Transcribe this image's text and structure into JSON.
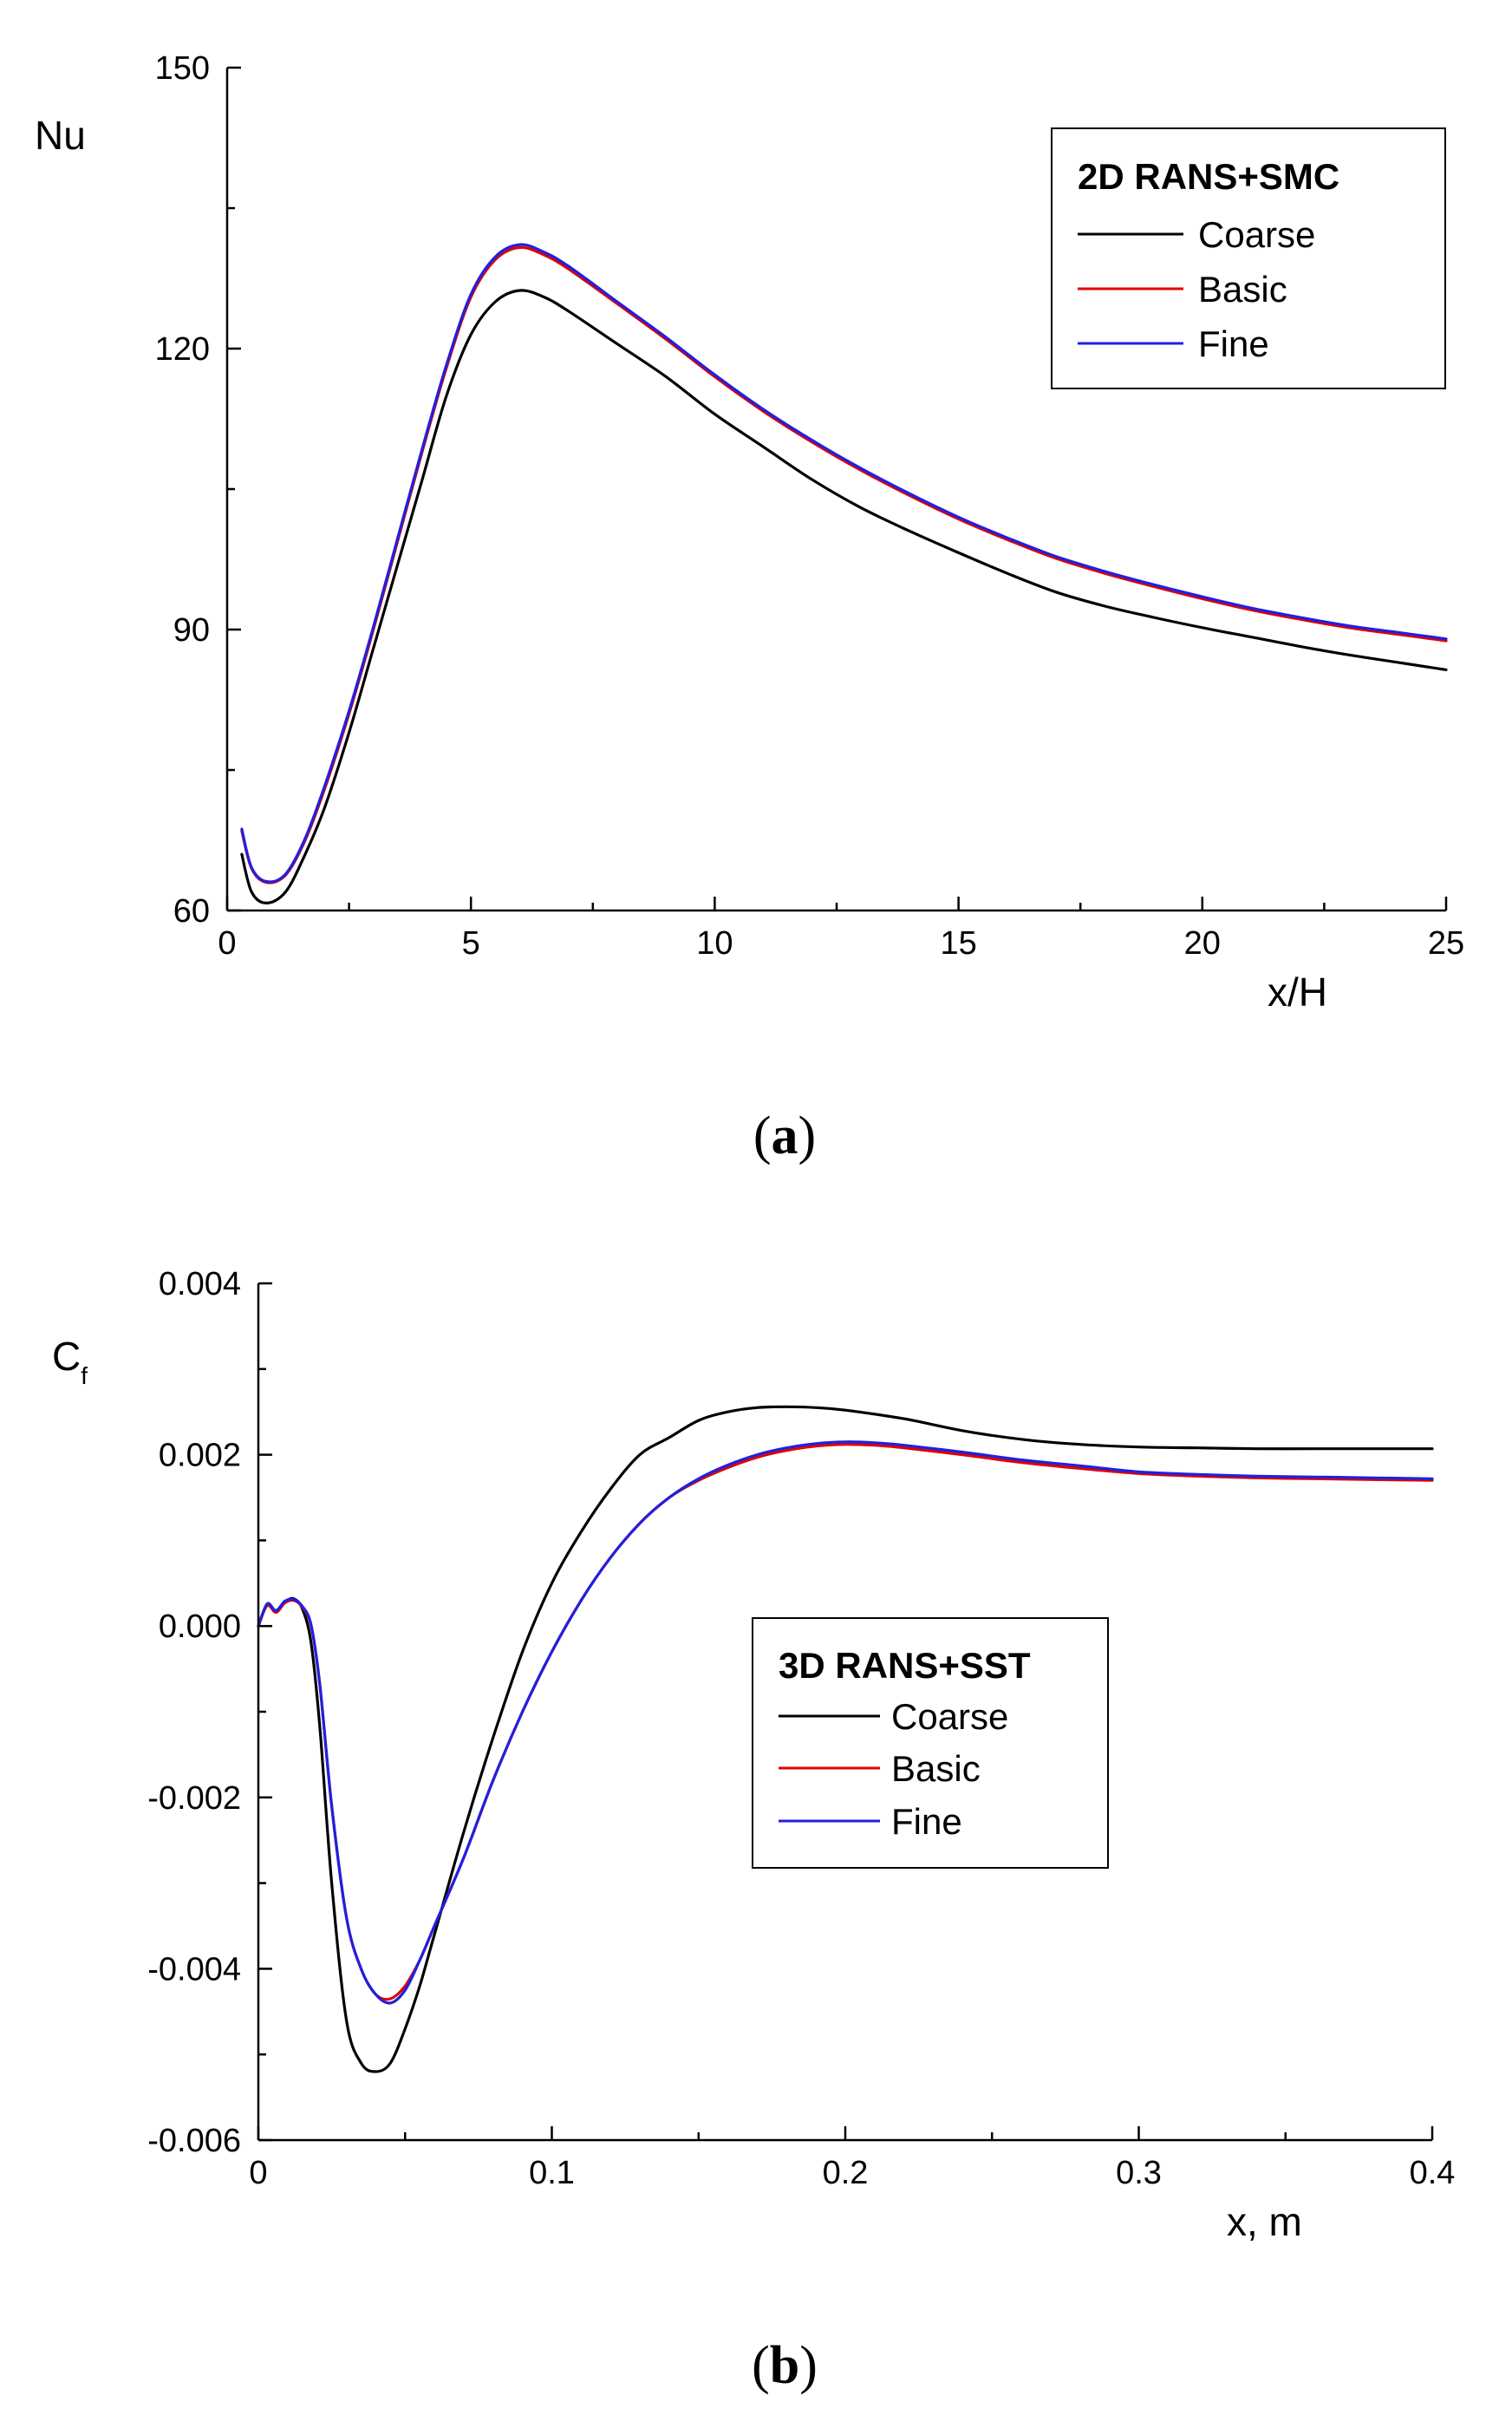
{
  "chart_data": [
    {
      "id": "a",
      "type": "line",
      "panel_label": "a",
      "ylabel": "Nu",
      "xlabel": "x/H",
      "xlim": [
        0,
        25
      ],
      "ylim": [
        60,
        150
      ],
      "xticks": [
        0,
        5,
        10,
        15,
        20,
        25
      ],
      "yticks": [
        60,
        90,
        120,
        150
      ],
      "xminor": [
        2.5,
        7.5,
        12.5,
        17.5,
        22.5
      ],
      "yminor": [
        75,
        105,
        135
      ],
      "legend": {
        "title": "2D RANS+SMC",
        "placement": "top-right"
      },
      "series": [
        {
          "name": "Coarse",
          "color": "#000000",
          "x": [
            0.3,
            0.5,
            0.8,
            1.2,
            1.6,
            2,
            2.5,
            3,
            3.5,
            4,
            4.5,
            5,
            5.5,
            6,
            6.5,
            7,
            8,
            9,
            10,
            11,
            12,
            13,
            14,
            15,
            16,
            17,
            18,
            19,
            20,
            21,
            22,
            23,
            24,
            25
          ],
          "y": [
            66,
            62,
            60.8,
            62,
            66,
            71,
            79,
            88,
            97,
            106,
            115,
            121.5,
            125,
            126.2,
            125.5,
            124,
            120.5,
            117,
            113,
            109.5,
            106,
            103,
            100.5,
            98.2,
            96,
            94,
            92.5,
            91.3,
            90.2,
            89.2,
            88.2,
            87.3,
            86.5,
            85.7
          ]
        },
        {
          "name": "Basic",
          "color": "#e00000",
          "x": [
            0.3,
            0.5,
            0.8,
            1.2,
            1.6,
            2,
            2.5,
            3,
            3.5,
            4,
            4.5,
            5,
            5.5,
            6,
            6.5,
            7,
            8,
            9,
            10,
            11,
            12,
            13,
            14,
            15,
            16,
            17,
            18,
            19,
            20,
            21,
            22,
            23,
            24,
            25
          ],
          "y": [
            68.5,
            64.5,
            63,
            63.8,
            67.5,
            73,
            81,
            90,
            99.5,
            109,
            118,
            125.5,
            129.5,
            130.8,
            130,
            128.5,
            124.8,
            121,
            117,
            113.3,
            110,
            107,
            104.3,
            101.8,
            99.6,
            97.6,
            96,
            94.6,
            93.3,
            92.1,
            91.1,
            90.2,
            89.5,
            88.8
          ]
        },
        {
          "name": "Fine",
          "color": "#2020e0",
          "x": [
            0.3,
            0.5,
            0.8,
            1.2,
            1.6,
            2,
            2.5,
            3,
            3.5,
            4,
            4.5,
            5,
            5.5,
            6,
            6.5,
            7,
            8,
            9,
            10,
            11,
            12,
            13,
            14,
            15,
            16,
            17,
            18,
            19,
            20,
            21,
            22,
            23,
            24,
            25
          ],
          "y": [
            68.7,
            64.6,
            63.1,
            63.9,
            67.7,
            73.3,
            81.3,
            90.3,
            99.8,
            109.3,
            118.3,
            125.8,
            129.8,
            131.1,
            130.3,
            128.8,
            125,
            121.2,
            117.2,
            113.5,
            110.2,
            107.2,
            104.5,
            102,
            99.8,
            97.8,
            96.2,
            94.8,
            93.5,
            92.3,
            91.3,
            90.4,
            89.7,
            89
          ]
        }
      ]
    },
    {
      "id": "b",
      "type": "line",
      "panel_label": "b",
      "ylabel": "C",
      "ylabel_sub": "f",
      "xlabel": "x, m",
      "xlim": [
        0,
        0.4
      ],
      "ylim": [
        -0.006,
        0.004
      ],
      "xticks": [
        0,
        0.1,
        0.2,
        0.3,
        0.4
      ],
      "xtick_labels": [
        "0",
        "0.1",
        "0.2",
        "0.3",
        "0.4"
      ],
      "yticks": [
        -0.006,
        -0.004,
        -0.002,
        0.0,
        0.002,
        0.004
      ],
      "ytick_labels": [
        "-0.006",
        "-0.004",
        "-0.002",
        "0.000",
        "0.002",
        "0.004"
      ],
      "xminor": [
        0.05,
        0.15,
        0.25,
        0.35
      ],
      "yminor": [
        -0.005,
        -0.003,
        -0.001,
        0.001,
        0.003
      ],
      "legend": {
        "title": "3D RANS+SST",
        "placement": "center"
      },
      "series": [
        {
          "name": "Coarse",
          "color": "#000000",
          "x": [
            0,
            0.003,
            0.006,
            0.009,
            0.012,
            0.015,
            0.018,
            0.021,
            0.025,
            0.03,
            0.035,
            0.04,
            0.045,
            0.05,
            0.055,
            0.06,
            0.07,
            0.08,
            0.09,
            0.1,
            0.11,
            0.12,
            0.13,
            0.14,
            0.15,
            0.16,
            0.17,
            0.18,
            0.19,
            0.2,
            0.22,
            0.24,
            0.26,
            0.28,
            0.3,
            0.32,
            0.34,
            0.36,
            0.38,
            0.4
          ],
          "y": [
            0,
            0.00025,
            0.00018,
            0.00028,
            0.00032,
            0.0002,
            -0.0002,
            -0.0012,
            -0.003,
            -0.0046,
            -0.0051,
            -0.0052,
            -0.0051,
            -0.0047,
            -0.0042,
            -0.0036,
            -0.0024,
            -0.0013,
            -0.0003,
            0.0005,
            0.0011,
            0.0016,
            0.002,
            0.0022,
            0.0024,
            0.0025,
            0.00255,
            0.00256,
            0.00255,
            0.00252,
            0.00242,
            0.00228,
            0.00218,
            0.00212,
            0.00209,
            0.00208,
            0.00207,
            0.00207,
            0.00207,
            0.00207
          ]
        },
        {
          "name": "Basic",
          "color": "#e00000",
          "x": [
            0,
            0.003,
            0.006,
            0.009,
            0.012,
            0.015,
            0.018,
            0.021,
            0.025,
            0.03,
            0.035,
            0.04,
            0.045,
            0.05,
            0.055,
            0.06,
            0.07,
            0.08,
            0.09,
            0.1,
            0.11,
            0.12,
            0.13,
            0.14,
            0.15,
            0.16,
            0.17,
            0.18,
            0.19,
            0.2,
            0.21,
            0.22,
            0.24,
            0.26,
            0.28,
            0.3,
            0.32,
            0.34,
            0.36,
            0.38,
            0.4
          ],
          "y": [
            0,
            0.00024,
            0.00016,
            0.00027,
            0.0003,
            0.00022,
            0,
            -0.0007,
            -0.0021,
            -0.0034,
            -0.004,
            -0.0043,
            -0.00435,
            -0.0042,
            -0.0039,
            -0.0035,
            -0.0027,
            -0.0018,
            -0.001,
            -0.0003,
            0.0003,
            0.0008,
            0.0012,
            0.0015,
            0.0017,
            0.00185,
            0.00197,
            0.00205,
            0.0021,
            0.00212,
            0.00211,
            0.00208,
            0.002,
            0.00191,
            0.00184,
            0.00178,
            0.00175,
            0.00173,
            0.00172,
            0.00171,
            0.0017
          ]
        },
        {
          "name": "Fine",
          "color": "#2020e0",
          "x": [
            0,
            0.003,
            0.006,
            0.009,
            0.012,
            0.015,
            0.018,
            0.021,
            0.025,
            0.03,
            0.035,
            0.04,
            0.045,
            0.05,
            0.055,
            0.06,
            0.07,
            0.08,
            0.09,
            0.1,
            0.11,
            0.12,
            0.13,
            0.14,
            0.15,
            0.16,
            0.17,
            0.18,
            0.19,
            0.2,
            0.21,
            0.22,
            0.24,
            0.26,
            0.28,
            0.3,
            0.32,
            0.34,
            0.36,
            0.38,
            0.4
          ],
          "y": [
            0,
            0.00026,
            0.00018,
            0.00029,
            0.00031,
            0.00023,
            1e-05,
            -0.0007,
            -0.0021,
            -0.0034,
            -0.004,
            -0.0043,
            -0.0044,
            -0.00425,
            -0.0039,
            -0.0035,
            -0.0027,
            -0.0018,
            -0.001,
            -0.0003,
            0.0003,
            0.0008,
            0.0012,
            0.0015,
            0.00172,
            0.00188,
            0.002,
            0.00208,
            0.00213,
            0.00215,
            0.00214,
            0.00211,
            0.00203,
            0.00194,
            0.00187,
            0.0018,
            0.00177,
            0.00175,
            0.00174,
            0.00173,
            0.00172
          ]
        }
      ]
    }
  ]
}
